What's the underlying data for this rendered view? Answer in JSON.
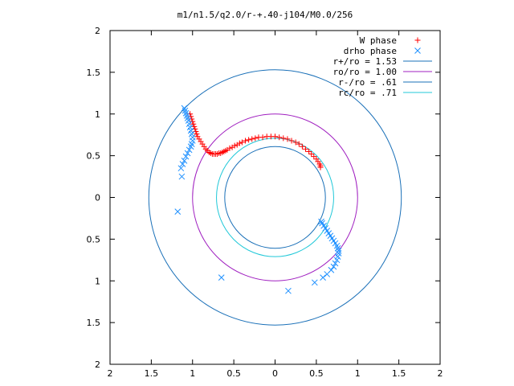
{
  "chart_data": {
    "type": "scatter",
    "title": "m1/n1.5/q2.0/r-+.40-j104/M0.0/256",
    "xlim": [
      -2,
      2
    ],
    "ylim": [
      -2,
      2
    ],
    "x_tick_labels": [
      "2",
      "1.5",
      "1",
      "0.5",
      "0",
      "0.5",
      "1",
      "1.5",
      "2"
    ],
    "y_tick_labels": [
      "2",
      "1.5",
      "1",
      "0.5",
      "0",
      "0.5",
      "1",
      "1.5",
      "2"
    ],
    "grid": false,
    "legend_position": "top-right",
    "series": [
      {
        "name": "W phase",
        "marker": "plus",
        "color": "#ff0000",
        "points": [
          [
            -1.03,
            1.0
          ],
          [
            -1.02,
            0.97
          ],
          [
            -1.01,
            0.94
          ],
          [
            -1.0,
            0.91
          ],
          [
            -0.99,
            0.88
          ],
          [
            -0.98,
            0.85
          ],
          [
            -0.97,
            0.82
          ],
          [
            -0.96,
            0.79
          ],
          [
            -0.95,
            0.76
          ],
          [
            -0.94,
            0.73
          ],
          [
            -0.92,
            0.7
          ],
          [
            -0.9,
            0.67
          ],
          [
            -0.88,
            0.64
          ],
          [
            -0.86,
            0.61
          ],
          [
            -0.84,
            0.58
          ],
          [
            -0.82,
            0.56
          ],
          [
            -0.8,
            0.54
          ],
          [
            -0.78,
            0.53
          ],
          [
            -0.76,
            0.52
          ],
          [
            -0.74,
            0.52
          ],
          [
            -0.72,
            0.52
          ],
          [
            -0.7,
            0.52
          ],
          [
            -0.68,
            0.53
          ],
          [
            -0.66,
            0.53
          ],
          [
            -0.64,
            0.54
          ],
          [
            -0.62,
            0.55
          ],
          [
            -0.6,
            0.56
          ],
          [
            -0.58,
            0.57
          ],
          [
            -0.55,
            0.59
          ],
          [
            -0.52,
            0.6
          ],
          [
            -0.49,
            0.62
          ],
          [
            -0.46,
            0.63
          ],
          [
            -0.43,
            0.65
          ],
          [
            -0.4,
            0.66
          ],
          [
            -0.36,
            0.68
          ],
          [
            -0.32,
            0.69
          ],
          [
            -0.28,
            0.7
          ],
          [
            -0.24,
            0.71
          ],
          [
            -0.2,
            0.72
          ],
          [
            -0.15,
            0.72
          ],
          [
            -0.1,
            0.73
          ],
          [
            -0.05,
            0.73
          ],
          [
            0.0,
            0.73
          ],
          [
            0.05,
            0.72
          ],
          [
            0.1,
            0.71
          ],
          [
            0.15,
            0.7
          ],
          [
            0.2,
            0.68
          ],
          [
            0.25,
            0.66
          ],
          [
            0.29,
            0.64
          ],
          [
            0.33,
            0.61
          ],
          [
            0.37,
            0.58
          ],
          [
            0.41,
            0.55
          ],
          [
            0.44,
            0.52
          ],
          [
            0.47,
            0.49
          ],
          [
            0.5,
            0.46
          ],
          [
            0.52,
            0.43
          ],
          [
            0.54,
            0.4
          ],
          [
            0.55,
            0.38
          ],
          [
            0.55,
            0.36
          ]
        ]
      },
      {
        "name": "drho phase",
        "marker": "x",
        "color": "#1e90ff",
        "points": [
          [
            -1.1,
            1.07
          ],
          [
            -1.09,
            1.04
          ],
          [
            -1.08,
            1.01
          ],
          [
            -1.07,
            0.98
          ],
          [
            -1.06,
            0.95
          ],
          [
            -1.05,
            0.92
          ],
          [
            -1.04,
            0.88
          ],
          [
            -1.03,
            0.84
          ],
          [
            -1.02,
            0.8
          ],
          [
            -1.01,
            0.76
          ],
          [
            -1.0,
            0.72
          ],
          [
            -1.0,
            0.68
          ],
          [
            -1.01,
            0.64
          ],
          [
            -1.02,
            0.61
          ],
          [
            -1.04,
            0.57
          ],
          [
            -1.06,
            0.53
          ],
          [
            -1.08,
            0.49
          ],
          [
            -1.1,
            0.44
          ],
          [
            -1.12,
            0.4
          ],
          [
            -1.14,
            0.35
          ],
          [
            -1.13,
            0.25
          ],
          [
            -1.18,
            -0.17
          ],
          [
            -0.65,
            -0.96
          ],
          [
            0.16,
            -1.12
          ],
          [
            0.48,
            -1.02
          ],
          [
            0.58,
            -0.96
          ],
          [
            0.63,
            -0.92
          ],
          [
            0.68,
            -0.87
          ],
          [
            0.71,
            -0.83
          ],
          [
            0.73,
            -0.79
          ],
          [
            0.75,
            -0.75
          ],
          [
            0.76,
            -0.71
          ],
          [
            0.77,
            -0.67
          ],
          [
            0.77,
            -0.64
          ],
          [
            0.76,
            -0.61
          ],
          [
            0.75,
            -0.58
          ],
          [
            0.73,
            -0.55
          ],
          [
            0.71,
            -0.52
          ],
          [
            0.69,
            -0.49
          ],
          [
            0.67,
            -0.46
          ],
          [
            0.65,
            -0.43
          ],
          [
            0.63,
            -0.4
          ],
          [
            0.61,
            -0.37
          ],
          [
            0.59,
            -0.34
          ],
          [
            0.57,
            -0.31
          ],
          [
            0.56,
            -0.29
          ]
        ]
      }
    ],
    "circles": [
      {
        "name": "r+/ro = 1.53",
        "radius": 1.53,
        "color": "#1a70b8"
      },
      {
        "name": "ro/ro = 1.00",
        "radius": 1.0,
        "color": "#a020c0"
      },
      {
        "name": "r-/ro = .61",
        "radius": 0.61,
        "color": "#1a70b8"
      },
      {
        "name": "rc/ro = .71",
        "radius": 0.71,
        "color": "#20c8d8"
      }
    ]
  }
}
